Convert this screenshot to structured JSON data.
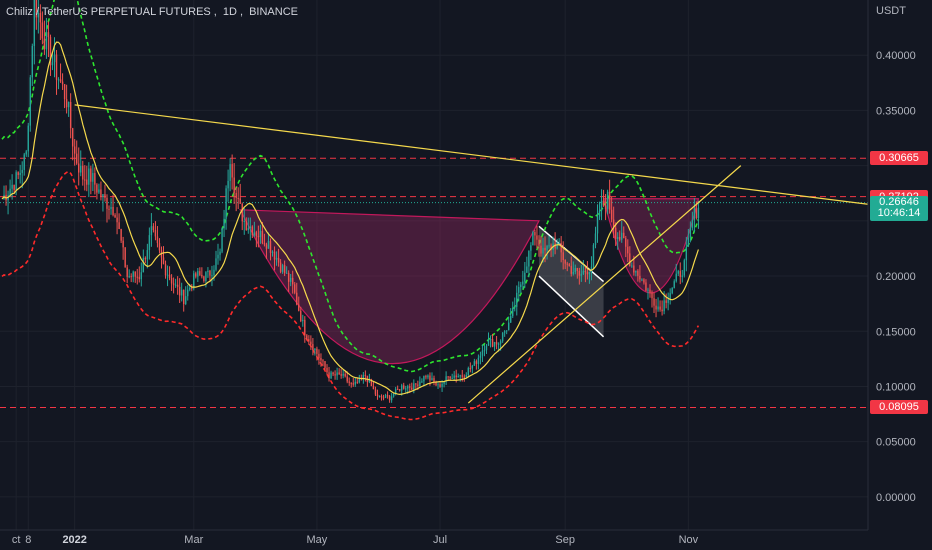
{
  "header": {
    "symbol": "Chiliz / TetherUS PERPETUAL FUTURES",
    "interval": "1D",
    "exchange": "BINANCE"
  },
  "axis": {
    "currency": "USDT"
  },
  "price_tags": [
    {
      "label": "0.30665",
      "price": 0.30665,
      "color": "#f23645"
    },
    {
      "label": "0.27192",
      "price": 0.27192,
      "color": "#f23645"
    },
    {
      "label": "0.26646",
      "price": 0.26646,
      "color": "#22ab94",
      "sub": "10:46:14"
    },
    {
      "label": "0.08095",
      "price": 0.08095,
      "color": "#f23645"
    }
  ],
  "chart_data": {
    "type": "candlestick",
    "title": "Chiliz / TetherUS PERPETUAL FUTURES, 1D, BINANCE",
    "ylim": [
      -0.03,
      0.45
    ],
    "y_ticks": [
      0.0,
      0.05,
      0.1,
      0.15,
      0.2,
      0.25,
      0.3,
      0.35,
      0.4
    ],
    "y_tick_labels": [
      "0.00000",
      "0.05000",
      "0.10000",
      "0.15000",
      "0.20000",
      "",
      "",
      "0.35000",
      "0.40000"
    ],
    "x_ticks": [
      "ct",
      "8",
      "2022",
      "Mar",
      "May",
      "Jul",
      "Sep",
      "Nov"
    ],
    "x_tick_days": [
      -29,
      -23,
      0,
      59,
      120,
      181,
      243,
      304
    ],
    "xlim": [
      -37,
      393
    ],
    "grid": true,
    "horizontal_levels": [
      0.30665,
      0.27192,
      0.08095
    ],
    "last_price": 0.26646,
    "countdown": "10:46:14",
    "close_anchors": [
      [
        -36,
        0.27
      ],
      [
        -28,
        0.29
      ],
      [
        -24,
        0.31
      ],
      [
        -20,
        0.45
      ],
      [
        -14,
        0.41
      ],
      [
        -8,
        0.38
      ],
      [
        -4,
        0.36
      ],
      [
        0,
        0.31
      ],
      [
        4,
        0.29
      ],
      [
        8,
        0.29
      ],
      [
        14,
        0.27
      ],
      [
        20,
        0.26
      ],
      [
        26,
        0.2
      ],
      [
        32,
        0.2
      ],
      [
        38,
        0.24
      ],
      [
        44,
        0.21
      ],
      [
        50,
        0.19
      ],
      [
        54,
        0.18
      ],
      [
        60,
        0.2
      ],
      [
        66,
        0.2
      ],
      [
        72,
        0.22
      ],
      [
        77,
        0.31
      ],
      [
        80,
        0.27
      ],
      [
        84,
        0.25
      ],
      [
        90,
        0.24
      ],
      [
        96,
        0.23
      ],
      [
        102,
        0.21
      ],
      [
        108,
        0.19
      ],
      [
        114,
        0.15
      ],
      [
        120,
        0.13
      ],
      [
        126,
        0.11
      ],
      [
        132,
        0.11
      ],
      [
        138,
        0.1
      ],
      [
        144,
        0.11
      ],
      [
        150,
        0.09
      ],
      [
        156,
        0.09
      ],
      [
        162,
        0.1
      ],
      [
        168,
        0.1
      ],
      [
        174,
        0.11
      ],
      [
        180,
        0.1
      ],
      [
        186,
        0.11
      ],
      [
        192,
        0.11
      ],
      [
        198,
        0.12
      ],
      [
        204,
        0.14
      ],
      [
        210,
        0.14
      ],
      [
        216,
        0.16
      ],
      [
        222,
        0.2
      ],
      [
        228,
        0.24
      ],
      [
        232,
        0.22
      ],
      [
        238,
        0.23
      ],
      [
        244,
        0.21
      ],
      [
        250,
        0.2
      ],
      [
        256,
        0.21
      ],
      [
        260,
        0.26
      ],
      [
        264,
        0.27
      ],
      [
        268,
        0.24
      ],
      [
        272,
        0.23
      ],
      [
        276,
        0.21
      ],
      [
        280,
        0.2
      ],
      [
        286,
        0.18
      ],
      [
        290,
        0.17
      ],
      [
        296,
        0.19
      ],
      [
        302,
        0.21
      ],
      [
        306,
        0.25
      ],
      [
        309,
        0.265
      ]
    ],
    "cup_fill": {
      "rim_left": [
        82,
        0.26
      ],
      "rim_right": [
        230,
        0.25
      ],
      "bottom_price": 0.08
    },
    "handle_fill": {
      "rim_left": [
        262,
        0.27
      ],
      "rim_right": [
        309,
        0.27
      ],
      "bottom_price": 0.16
    },
    "channel": {
      "upper": [
        [
          230,
          0.245
        ],
        [
          262,
          0.195
        ]
      ],
      "lower": [
        [
          230,
          0.2
        ],
        [
          262,
          0.145
        ]
      ]
    },
    "trendlines": [
      {
        "from": [
          0,
          0.355
        ],
        "to": [
          393,
          0.265
        ],
        "color": "#f5d94c"
      },
      {
        "from": [
          195,
          0.085
        ],
        "to": [
          330,
          0.3
        ],
        "color": "#f5d94c"
      }
    ]
  }
}
